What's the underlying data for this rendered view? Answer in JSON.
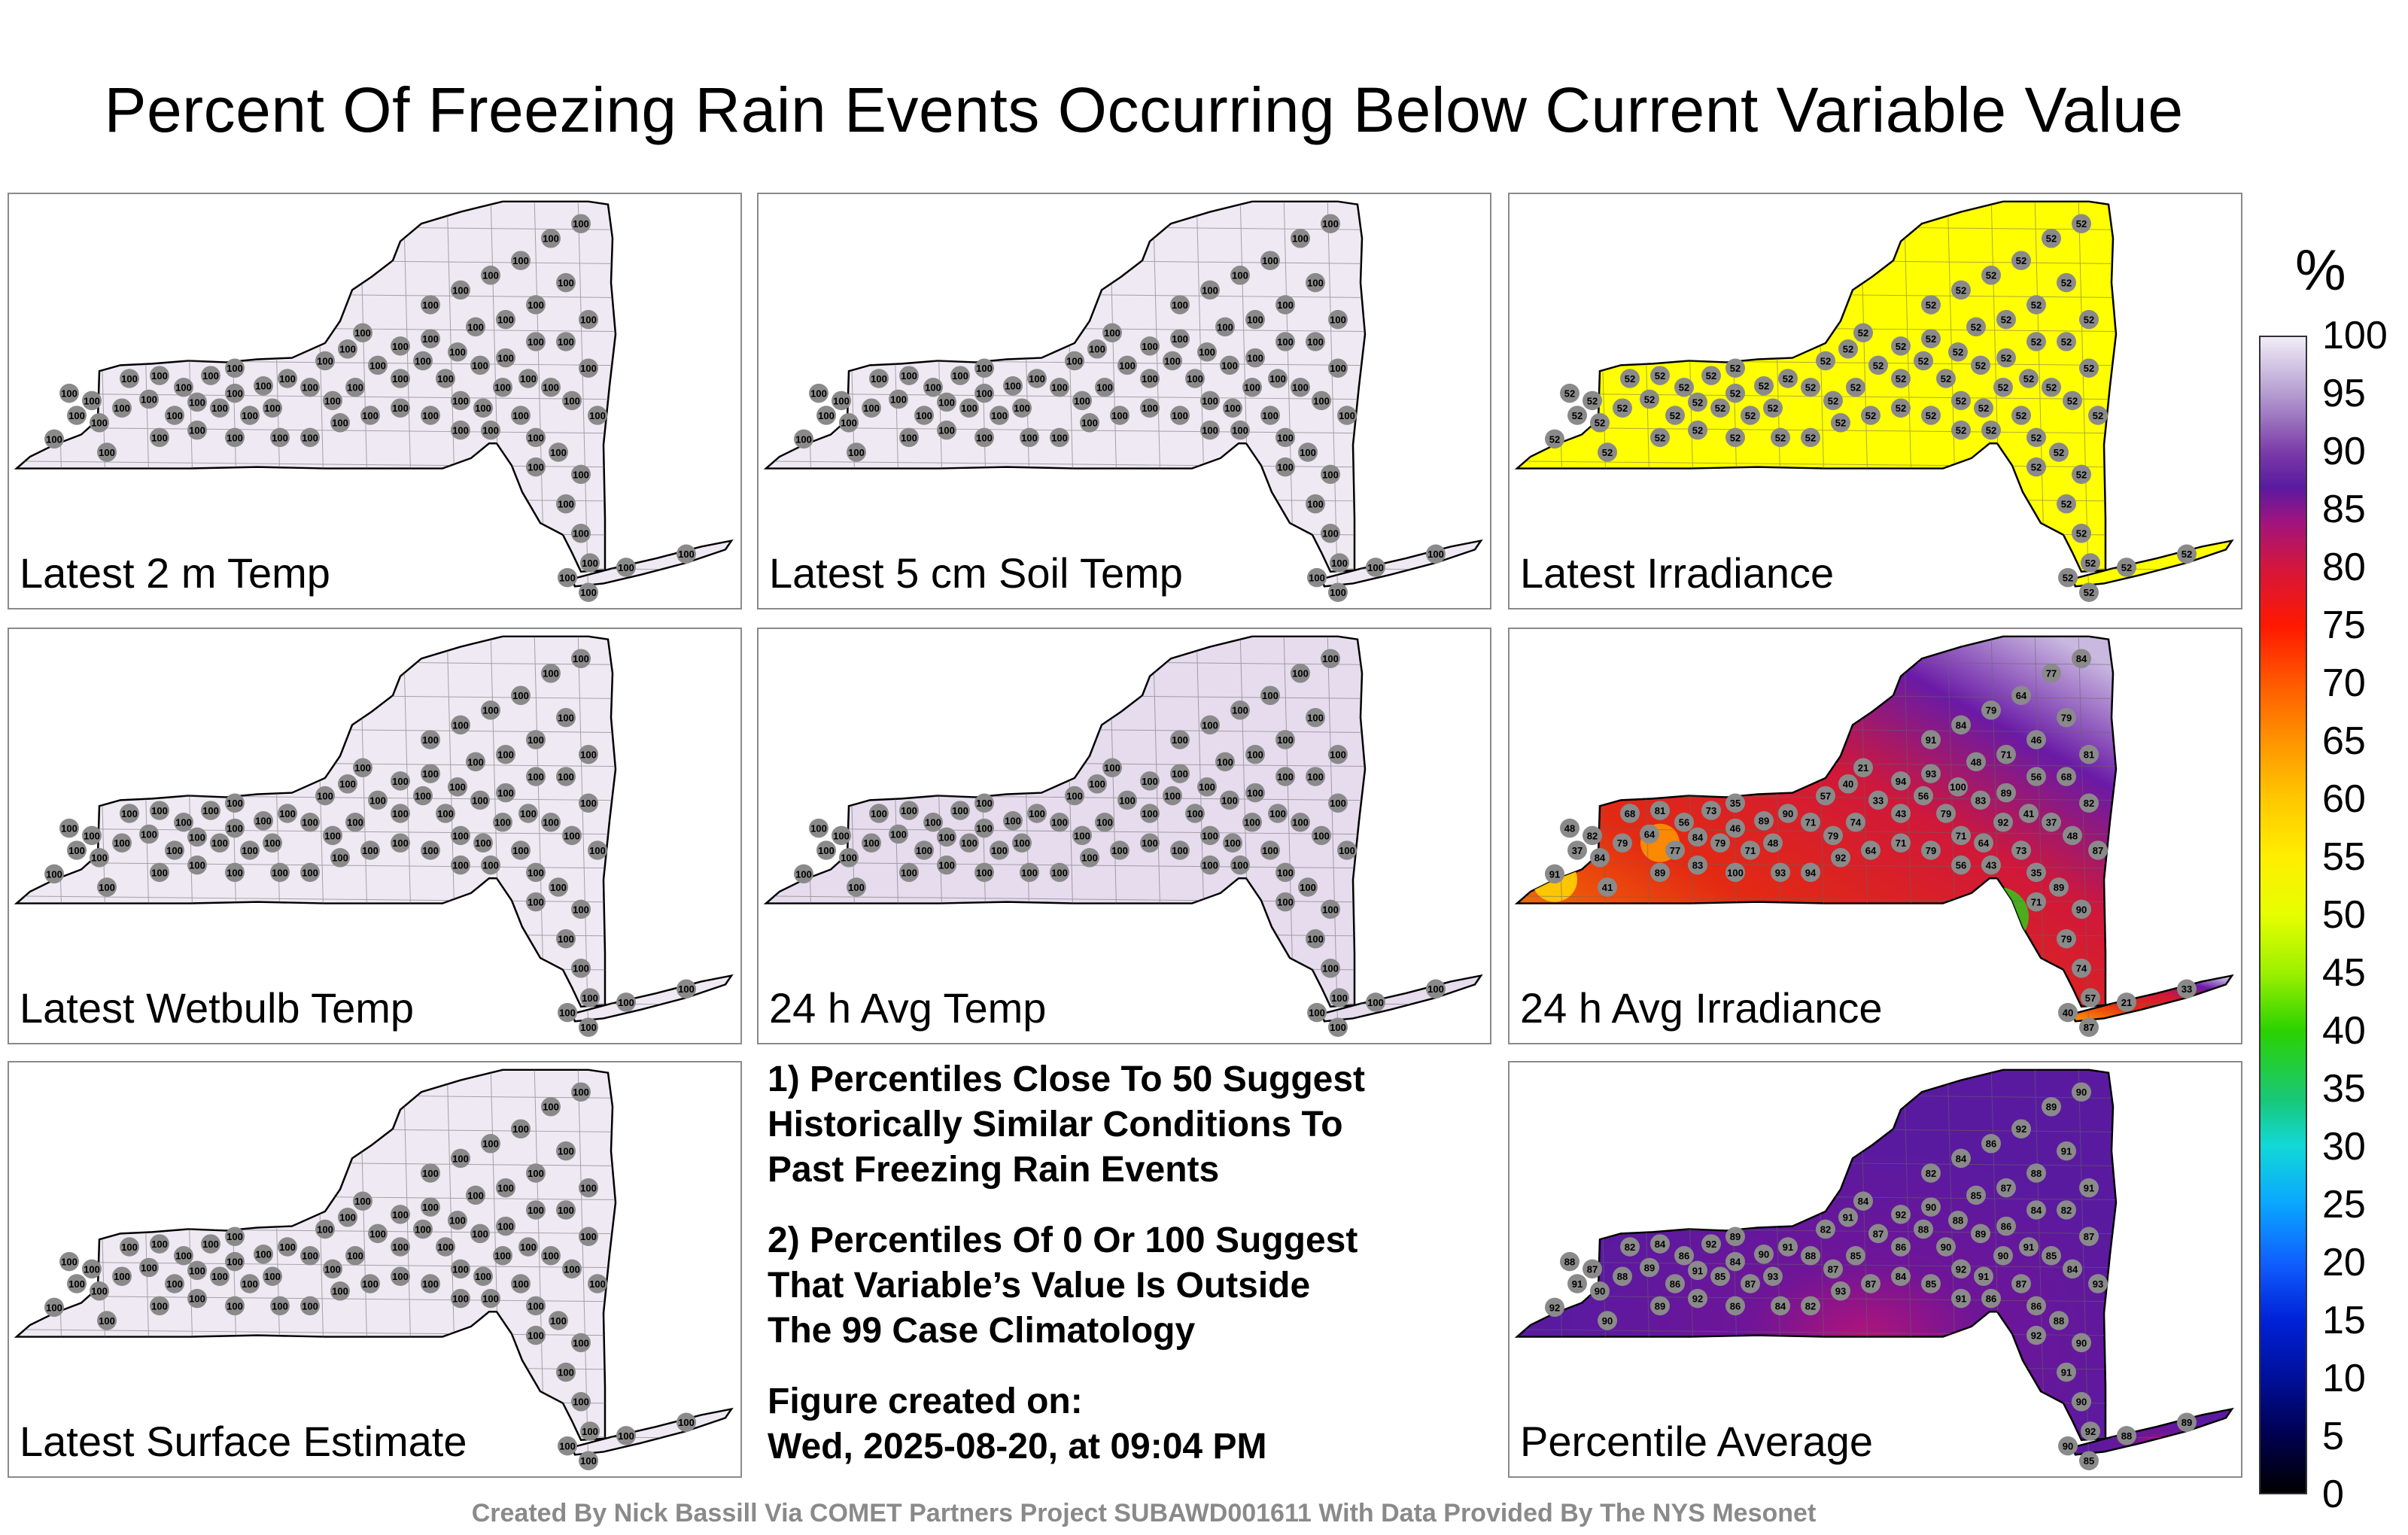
{
  "title": "Percent Of Freezing Rain Events Occurring Below Current Variable Value",
  "panels": [
    {
      "label": "Latest 2 m Temp",
      "fill": "#efe9f3",
      "station_value": "100",
      "style": "uniform"
    },
    {
      "label": "Latest 5 cm Soil Temp",
      "fill": "#efe9f3",
      "station_value": "100",
      "style": "uniform"
    },
    {
      "label": "Latest Irradiance",
      "fill": "#ffff00",
      "station_value": "52",
      "style": "uniform"
    },
    {
      "label": "Latest Wetbulb Temp",
      "fill": "#efe9f3",
      "station_value": "100",
      "style": "uniform"
    },
    {
      "label": "24 h Avg Temp",
      "fill": "#e6dcee",
      "station_value": "100",
      "style": "uniform"
    },
    {
      "label": "24 h Avg Irradiance",
      "fill": "#e23b1e",
      "station_value": "79",
      "style": "gradient"
    },
    {
      "label": "Latest Surface Estimate",
      "fill": "#efe9f3",
      "station_value": "100",
      "style": "uniform"
    },
    {
      "label": "Percentile Average",
      "fill": "#5b1aa0",
      "station_value": "90",
      "style": "purple"
    }
  ],
  "notes": {
    "n1_line1": "1) Percentiles Close To 50 Suggest",
    "n1_line2": "Historically Similar Conditions To",
    "n1_line3": "Past Freezing Rain Events",
    "n2_line1": "2) Percentiles Of 0 Or 100 Suggest",
    "n2_line2": "That Variable’s Value Is Outside",
    "n2_line3": "The 99 Case Climatology",
    "created_line1": "Figure created on:",
    "created_line2": "Wed, 2025-08-20, at 09:04 PM"
  },
  "colorbar": {
    "unit": "%",
    "ticks": [
      "100",
      "95",
      "90",
      "85",
      "80",
      "75",
      "70",
      "65",
      "60",
      "55",
      "50",
      "45",
      "40",
      "35",
      "30",
      "25",
      "20",
      "15",
      "10",
      "5",
      "0"
    ]
  },
  "footer": "Created By Nick Bassill Via COMET Partners Project SUBAWD001611 With Data Provided By The NYS Mesonet",
  "gradient_panel_values": [
    "91",
    "84",
    "79",
    "64",
    "77",
    "84",
    "79",
    "46",
    "71",
    "48",
    "68",
    "81",
    "56",
    "73",
    "35",
    "89",
    "90",
    "71",
    "79",
    "74",
    "57",
    "40",
    "21",
    "33",
    "43",
    "56",
    "79",
    "71",
    "64",
    "92",
    "94",
    "93",
    "100",
    "83",
    "89",
    "41",
    "37",
    "48",
    "82",
    "87"
  ],
  "average_panel_values": [
    "92",
    "90",
    "88",
    "89",
    "86",
    "91",
    "85",
    "84",
    "87",
    "93",
    "82",
    "84",
    "86",
    "92",
    "89",
    "90",
    "91",
    "88",
    "87",
    "85",
    "82",
    "91",
    "84",
    "87",
    "86",
    "88",
    "90",
    "92",
    "91",
    "90"
  ]
}
